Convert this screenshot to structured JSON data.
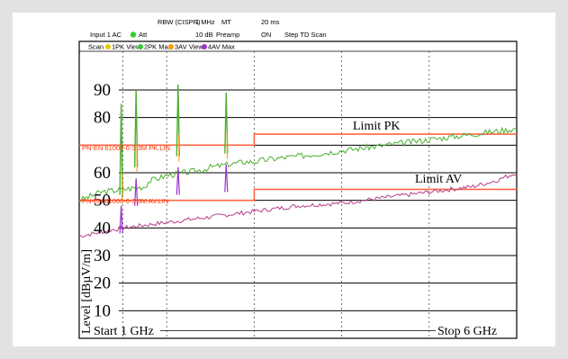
{
  "header": {
    "rbw_label": "RBW (CISPR)",
    "rbw_value": "1 MHz",
    "mode": "MT",
    "time": "20 ms",
    "input": "Input 1 AC",
    "att_label": "Att",
    "att_value": "10 dB",
    "preamp_label": "Preamp",
    "preamp_value": "ON",
    "step": "Step TD Scan",
    "scan_label": "Scan",
    "traces": [
      {
        "label": "1PK View",
        "color": "#e8c800"
      },
      {
        "label": "2PK Max",
        "color": "#33cc33"
      },
      {
        "label": "3AV View",
        "color": "#ff9900"
      },
      {
        "label": "4AV Max",
        "color": "#9933cc"
      }
    ],
    "indicator_color": "#33cc33"
  },
  "limits": {
    "pk_line_name": "PN-EN 61000-6-3 3M PK.LIN",
    "av_line_name": "PN-EN 61000-6-3 3M AV.LIN",
    "pk_label": "Limit PK",
    "av_label": "Limit AV",
    "color": "#ff6644",
    "pk_steps": [
      [
        1,
        70
      ],
      [
        3,
        70
      ],
      [
        3,
        74
      ],
      [
        6,
        74
      ]
    ],
    "av_steps": [
      [
        1,
        50
      ],
      [
        3,
        50
      ],
      [
        3,
        54
      ],
      [
        6,
        54
      ]
    ]
  },
  "chart_data": {
    "type": "line",
    "title": "",
    "ylabel": "Level [dBµV/m]",
    "xlabel": "",
    "x_start_label": "Start 1 GHz",
    "x_stop_label": "Stop 6 GHz",
    "xlim": [
      1,
      6
    ],
    "ylim": [
      0,
      90
    ],
    "yticks": [
      10,
      20,
      30,
      40,
      50,
      60,
      70,
      80,
      90
    ],
    "ytick_labels": [
      "10",
      "20",
      "30",
      "40",
      "50",
      "60",
      "",
      "80",
      "90"
    ],
    "x_unit": "GHz",
    "grid": true,
    "series": [
      {
        "name": "2PK Max",
        "color": "#4caf30",
        "x": [
          1,
          1.25,
          1.5,
          1.75,
          1.8,
          2.0,
          2.2,
          2.4,
          2.5,
          2.7,
          2.9,
          3.0,
          3.2,
          3.5,
          3.75,
          4.0,
          4.25,
          4.5,
          4.75,
          5.0,
          5.25,
          5.5,
          5.75,
          6.0
        ],
        "y": [
          50,
          53,
          54,
          55,
          57,
          59,
          60,
          61,
          62,
          63,
          64,
          64,
          65,
          66,
          67,
          68,
          69,
          70,
          71,
          72,
          73,
          74,
          75,
          76
        ]
      },
      {
        "name": "4AV Max",
        "color": "#b5408a",
        "x": [
          1,
          1.25,
          1.5,
          1.75,
          2.0,
          2.25,
          2.5,
          2.75,
          3.0,
          3.25,
          3.5,
          3.75,
          4.0,
          4.25,
          4.5,
          4.75,
          5.0,
          5.25,
          5.5,
          5.75,
          6.0
        ],
        "y": [
          37,
          38.5,
          40,
          41,
          42,
          43,
          44,
          45,
          46,
          47,
          48,
          48.5,
          49,
          50,
          51,
          52,
          53,
          54,
          55,
          57,
          60
        ]
      }
    ],
    "peaks": [
      {
        "x": 1.48,
        "pk": 85,
        "av": 48
      },
      {
        "x": 1.65,
        "pk": 90,
        "av": 58
      },
      {
        "x": 2.13,
        "pk": 92,
        "av": 62
      },
      {
        "x": 2.68,
        "pk": 89,
        "av": 63
      }
    ]
  }
}
